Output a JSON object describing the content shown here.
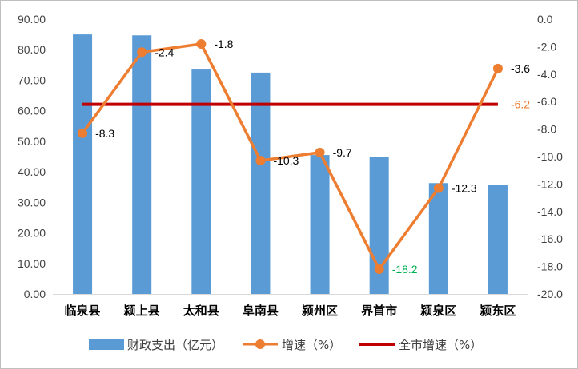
{
  "chart_data": {
    "type": "bar",
    "title": "",
    "categories": [
      "临泉县",
      "颍上县",
      "太和县",
      "阜南县",
      "颍州区",
      "界首市",
      "颍泉区",
      "颍东区"
    ],
    "y_left": {
      "min": 0,
      "max": 90,
      "step": 10,
      "tick_labels": [
        "0.00",
        "10.00",
        "20.00",
        "30.00",
        "40.00",
        "50.00",
        "60.00",
        "70.00",
        "80.00",
        "90.00"
      ]
    },
    "y_right": {
      "min": -20,
      "max": 0,
      "step": 2,
      "tick_labels": [
        "-20.0",
        "-18.0",
        "-16.0",
        "-14.0",
        "-12.0",
        "-10.0",
        "-8.0",
        "-6.0",
        "-4.0",
        "-2.0",
        "0.0"
      ]
    },
    "series": [
      {
        "name": "财政支出（亿元）",
        "type": "bar",
        "axis": "left",
        "color": "#5b9bd5",
        "values": [
          85.0,
          84.7,
          73.5,
          72.5,
          45.5,
          44.8,
          36.3,
          35.7
        ]
      },
      {
        "name": "增速（%）",
        "type": "line",
        "axis": "right",
        "color": "#ed7d31",
        "values": [
          -8.3,
          -2.4,
          -1.8,
          -10.3,
          -9.7,
          -18.2,
          -12.3,
          -3.6
        ],
        "labels": [
          "-8.3",
          "-2.4",
          "-1.8",
          "-10.3",
          "-9.7",
          "-18.2",
          "-12.3",
          "-3.6"
        ],
        "label_colors": [
          "#000000",
          "#000000",
          "#000000",
          "#000000",
          "#000000",
          "#00b050",
          "#000000",
          "#000000"
        ]
      },
      {
        "name": "全市增速（%）",
        "type": "line",
        "axis": "right",
        "color": "#c00000",
        "value": -6.2,
        "label": "-6.2",
        "label_color": "#ed7d31"
      }
    ],
    "grid": false,
    "legend_position": "bottom"
  }
}
